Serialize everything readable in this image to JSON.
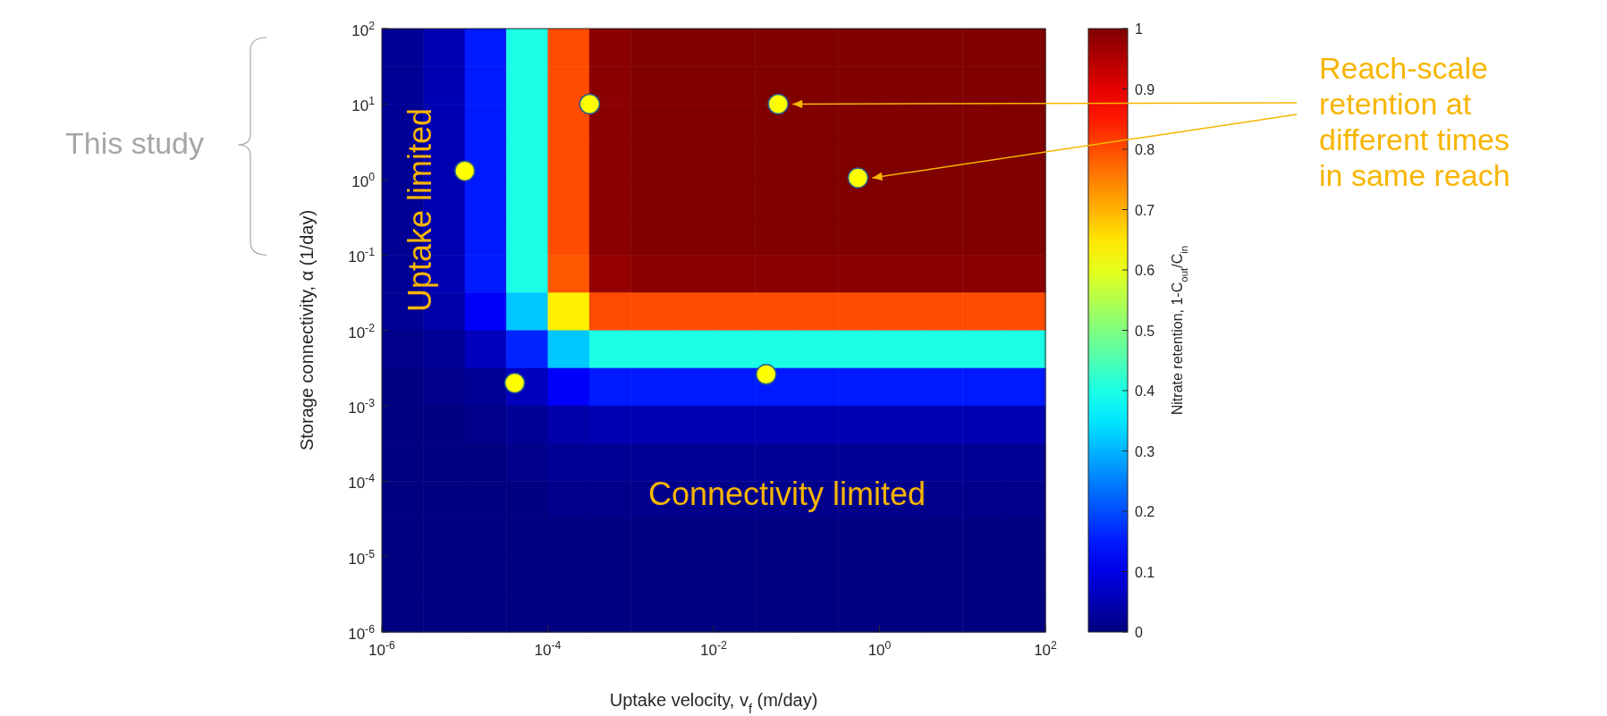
{
  "chart_data": {
    "type": "heatmap",
    "xlabel": "Uptake velocity, v$_{f}$ (m/day)",
    "ylabel": "Storage connectivity, α (1/day)",
    "clabel": "Nitrate retention, 1-C$_{out}$/C$_{in}$",
    "log": "xy",
    "cells": [
      [
        0.02,
        0.05,
        0.15,
        0.4,
        0.8,
        0.99,
        1,
        1,
        1,
        1,
        1,
        1,
        1,
        1,
        1,
        1
      ],
      [
        0.02,
        0.05,
        0.15,
        0.4,
        0.8,
        0.99,
        1,
        1,
        1,
        1,
        1,
        1,
        1,
        1,
        1,
        1
      ],
      [
        0.02,
        0.05,
        0.15,
        0.4,
        0.8,
        0.99,
        1,
        1,
        1,
        1,
        1,
        1,
        1,
        1,
        1,
        1
      ],
      [
        0.02,
        0.05,
        0.15,
        0.4,
        0.8,
        0.99,
        1,
        1,
        1,
        1,
        1,
        1,
        1,
        1,
        1,
        1
      ],
      [
        0.02,
        0.05,
        0.15,
        0.4,
        0.8,
        0.99,
        1,
        1,
        1,
        1,
        1,
        1,
        1,
        1,
        1,
        1
      ],
      [
        0.02,
        0.05,
        0.15,
        0.4,
        0.8,
        0.99,
        1,
        1,
        1,
        1,
        1,
        1,
        1,
        1,
        1,
        1
      ],
      [
        0.02,
        0.05,
        0.15,
        0.4,
        0.79,
        0.98,
        0.99,
        0.99,
        0.99,
        0.99,
        0.99,
        0.99,
        0.99,
        0.99,
        0.99,
        0.99
      ],
      [
        0.02,
        0.04,
        0.12,
        0.32,
        0.64,
        0.8,
        0.8,
        0.8,
        0.8,
        0.8,
        0.8,
        0.8,
        0.8,
        0.8,
        0.8,
        0.8
      ],
      [
        0.01,
        0.02,
        0.06,
        0.16,
        0.32,
        0.4,
        0.4,
        0.4,
        0.4,
        0.4,
        0.4,
        0.4,
        0.4,
        0.4,
        0.4,
        0.4
      ],
      [
        0,
        0.01,
        0.02,
        0.06,
        0.12,
        0.15,
        0.15,
        0.15,
        0.15,
        0.15,
        0.15,
        0.15,
        0.15,
        0.15,
        0.15,
        0.15
      ],
      [
        0,
        0,
        0.01,
        0.02,
        0.04,
        0.05,
        0.05,
        0.05,
        0.05,
        0.05,
        0.05,
        0.05,
        0.05,
        0.05,
        0.05,
        0.05
      ],
      [
        0,
        0,
        0,
        0.01,
        0.02,
        0.02,
        0.02,
        0.02,
        0.02,
        0.02,
        0.02,
        0.02,
        0.02,
        0.02,
        0.02,
        0.02
      ],
      [
        0,
        0,
        0,
        0,
        0.01,
        0.01,
        0.01,
        0.01,
        0.01,
        0.01,
        0.01,
        0.01,
        0.01,
        0.01,
        0.01,
        0.01
      ],
      [
        0,
        0,
        0,
        0,
        0,
        0,
        0,
        0,
        0,
        0,
        0,
        0,
        0,
        0,
        0,
        0
      ],
      [
        0,
        0,
        0,
        0,
        0,
        0,
        0,
        0,
        0,
        0,
        0,
        0,
        0,
        0,
        0,
        0
      ],
      [
        0,
        0,
        0,
        0,
        0,
        0,
        0,
        0,
        0,
        0,
        0,
        0,
        0,
        0,
        0,
        0
      ]
    ],
    "clim": [
      0,
      1
    ],
    "cticks": [
      0,
      0.1,
      0.2,
      0.3,
      0.4,
      0.5,
      0.6,
      0.7,
      0.8,
      0.9,
      1
    ],
    "xlim": [
      1e-06,
      100
    ],
    "xticks": [
      {
        "value": 1e-06,
        "label": "10$^{-6}$"
      },
      {
        "value": 0.0001,
        "label": "10$^{-4}$"
      },
      {
        "value": 0.01,
        "label": "10$^{-2}$"
      },
      {
        "value": 1,
        "label": "10$^{0}$"
      },
      {
        "value": 100,
        "label": "10$^{2}$"
      }
    ],
    "ylim": [
      1e-06,
      100
    ],
    "yticks": [
      {
        "value": 1e-06,
        "label": "10$^{-6}$"
      },
      {
        "value": 1e-05,
        "label": "10$^{-5}$"
      },
      {
        "value": 0.0001,
        "label": "10$^{-4}$"
      },
      {
        "value": 0.001,
        "label": "10$^{-3}$"
      },
      {
        "value": 0.01,
        "label": "10$^{-2}$"
      },
      {
        "value": 0.1,
        "label": "10$^{-1}$"
      },
      {
        "value": 1,
        "label": "10$^{0}$"
      },
      {
        "value": 10,
        "label": "10$^{1}$"
      },
      {
        "value": 100,
        "label": "10$^{2}$"
      }
    ],
    "series": [
      {
        "type": "scatter",
        "color": "#ffff00",
        "marker": "circle",
        "x": [
          1e-05,
          0.00032,
          0.06,
          0.55,
          4e-05,
          0.043
        ],
        "values": [
          1.3,
          10,
          10,
          1.05,
          0.002,
          0.0026
        ]
      }
    ],
    "annotations": [
      "Uptake limited",
      "Connectivity limited",
      "Reach-scale retention at different times in same reach",
      "This study"
    ]
  }
}
